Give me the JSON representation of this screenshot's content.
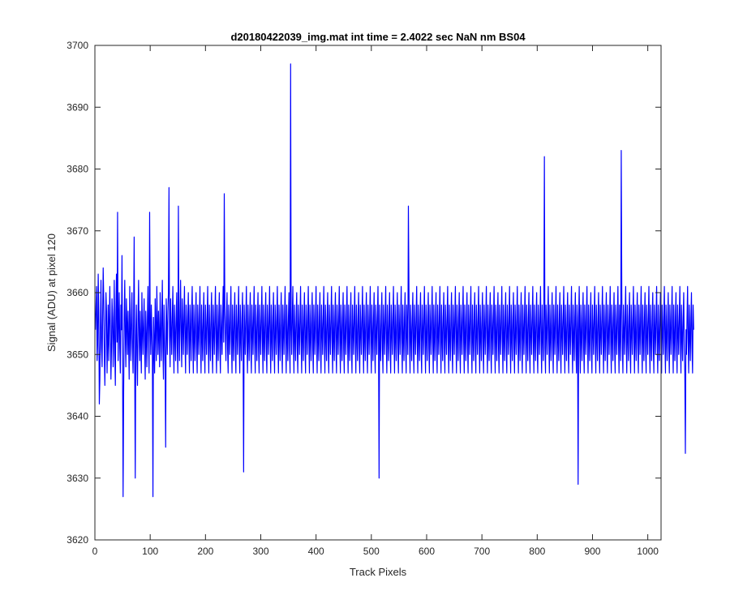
{
  "chart_data": {
    "type": "line",
    "title": "d20180422039_img.mat int time = 2.4022 sec  NaN nm BS04",
    "xlabel": "Track Pixels",
    "ylabel": "Signal (ADU) at pixel 120",
    "xlim": [
      0,
      1024
    ],
    "ylim": [
      3620,
      3700
    ],
    "xticks": [
      0,
      100,
      200,
      300,
      400,
      500,
      600,
      700,
      800,
      900,
      1000
    ],
    "yticks": [
      3620,
      3630,
      3640,
      3650,
      3660,
      3670,
      3680,
      3690,
      3700
    ],
    "xtick_labels": [
      "0",
      "100",
      "200",
      "300",
      "400",
      "500",
      "600",
      "700",
      "800",
      "900",
      "1000"
    ],
    "ytick_labels": [
      "3620",
      "3630",
      "3640",
      "3650",
      "3660",
      "3670",
      "3680",
      "3690",
      "3700"
    ],
    "grid": false,
    "legend": "none",
    "series": [
      {
        "color": "#0000ff",
        "x_start": 1,
        "x_step": 1,
        "values": [
          3654,
          3658,
          3661,
          3649,
          3652,
          3663,
          3657,
          3642,
          3646,
          3655,
          3662,
          3651,
          3648,
          3656,
          3664,
          3659,
          3650,
          3645,
          3653,
          3660,
          3657,
          3647,
          3652,
          3658,
          3649,
          3655,
          3661,
          3654,
          3646,
          3651,
          3659,
          3656,
          3648,
          3653,
          3662,
          3650,
          3645,
          3657,
          3663,
          3652,
          3673,
          3649,
          3655,
          3660,
          3651,
          3647,
          3658,
          3654,
          3666,
          3650,
          3627,
          3644,
          3656,
          3662,
          3653,
          3648,
          3659,
          3655,
          3650,
          3657,
          3652,
          3646,
          3661,
          3654,
          3649,
          3656,
          3660,
          3651,
          3647,
          3655,
          3669,
          3648,
          3630,
          3653,
          3658,
          3650,
          3645,
          3656,
          3662,
          3653,
          3649,
          3657,
          3652,
          3647,
          3660,
          3654,
          3650,
          3655,
          3659,
          3651,
          3646,
          3657,
          3653,
          3648,
          3656,
          3661,
          3652,
          3647,
          3673,
          3655,
          3650,
          3658,
          3654,
          3649,
          3627,
          3656,
          3652,
          3647,
          3659,
          3654,
          3649,
          3661,
          3655,
          3650,
          3657,
          3653,
          3648,
          3660,
          3654,
          3649,
          3656,
          3662,
          3651,
          3646,
          3658,
          3653,
          3648,
          3635,
          3659,
          3655,
          3650,
          3657,
          3660,
          3677,
          3653,
          3648,
          3659,
          3654,
          3650,
          3656,
          3661,
          3652,
          3647,
          3658,
          3653,
          3649,
          3656,
          3660,
          3651,
          3647,
          3674,
          3654,
          3649,
          3657,
          3662,
          3653,
          3648,
          3659,
          3655,
          3650,
          3656,
          3661,
          3652,
          3647,
          3658,
          3654,
          3650,
          3656,
          3660,
          3652,
          3647,
          3658,
          3654,
          3649,
          3657,
          3661,
          3652,
          3647,
          3658,
          3653,
          3649,
          3656,
          3660,
          3651,
          3647,
          3658,
          3654,
          3650,
          3656,
          3661,
          3652,
          3647,
          3658,
          3653,
          3649,
          3656,
          3660,
          3651,
          3647,
          3658,
          3654,
          3650,
          3656,
          3661,
          3652,
          3647,
          3658,
          3653,
          3649,
          3656,
          3660,
          3651,
          3647,
          3658,
          3654,
          3650,
          3656,
          3661,
          3652,
          3647,
          3658,
          3653,
          3649,
          3656,
          3660,
          3651,
          3647,
          3658,
          3654,
          3650,
          3656,
          3661,
          3652,
          3676,
          3658,
          3653,
          3649,
          3656,
          3660,
          3651,
          3647,
          3658,
          3654,
          3650,
          3656,
          3661,
          3652,
          3647,
          3658,
          3653,
          3649,
          3656,
          3660,
          3651,
          3647,
          3658,
          3654,
          3650,
          3656,
          3661,
          3652,
          3647,
          3658,
          3653,
          3649,
          3656,
          3660,
          3651,
          3631,
          3658,
          3654,
          3650,
          3656,
          3661,
          3652,
          3647,
          3658,
          3653,
          3649,
          3656,
          3660,
          3651,
          3647,
          3658,
          3654,
          3650,
          3656,
          3661,
          3652,
          3647,
          3658,
          3653,
          3649,
          3656,
          3660,
          3651,
          3647,
          3658,
          3654,
          3650,
          3656,
          3661,
          3652,
          3647,
          3658,
          3653,
          3649,
          3656,
          3660,
          3651,
          3647,
          3658,
          3654,
          3650,
          3656,
          3661,
          3652,
          3647,
          3658,
          3653,
          3649,
          3656,
          3660,
          3651,
          3647,
          3658,
          3654,
          3650,
          3656,
          3661,
          3652,
          3647,
          3658,
          3653,
          3649,
          3656,
          3660,
          3651,
          3647,
          3658,
          3654,
          3650,
          3656,
          3661,
          3652,
          3647,
          3658,
          3653,
          3649,
          3656,
          3660,
          3651,
          3647,
          3697,
          3654,
          3650,
          3656,
          3661,
          3652,
          3647,
          3658,
          3653,
          3649,
          3656,
          3660,
          3651,
          3647,
          3658,
          3654,
          3650,
          3656,
          3661,
          3652,
          3647,
          3658,
          3653,
          3649,
          3656,
          3660,
          3651,
          3647,
          3658,
          3654,
          3650,
          3656,
          3661,
          3652,
          3647,
          3658,
          3653,
          3649,
          3656,
          3660,
          3651,
          3647,
          3658,
          3654,
          3650,
          3656,
          3661,
          3652,
          3647,
          3658,
          3653,
          3649,
          3656,
          3660,
          3651,
          3647,
          3658,
          3654,
          3650,
          3656,
          3661,
          3652,
          3647,
          3658,
          3653,
          3649,
          3656,
          3660,
          3651,
          3647,
          3658,
          3654,
          3650,
          3656,
          3661,
          3652,
          3647,
          3658,
          3653,
          3649,
          3656,
          3660,
          3651,
          3647,
          3658,
          3654,
          3650,
          3656,
          3661,
          3652,
          3647,
          3658,
          3653,
          3649,
          3656,
          3660,
          3651,
          3647,
          3658,
          3654,
          3650,
          3656,
          3661,
          3652,
          3647,
          3658,
          3653,
          3649,
          3656,
          3660,
          3651,
          3647,
          3658,
          3654,
          3650,
          3656,
          3661,
          3652,
          3647,
          3658,
          3653,
          3649,
          3656,
          3660,
          3651,
          3647,
          3658,
          3654,
          3650,
          3656,
          3661,
          3652,
          3647,
          3658,
          3653,
          3649,
          3656,
          3660,
          3651,
          3647,
          3658,
          3654,
          3650,
          3656,
          3661,
          3652,
          3647,
          3658,
          3653,
          3649,
          3656,
          3660,
          3651,
          3647,
          3658,
          3654,
          3650,
          3656,
          3661,
          3652,
          3630,
          3658,
          3653,
          3649,
          3656,
          3660,
          3651,
          3647,
          3658,
          3654,
          3650,
          3656,
          3661,
          3652,
          3647,
          3658,
          3653,
          3649,
          3656,
          3660,
          3651,
          3647,
          3658,
          3654,
          3650,
          3656,
          3661,
          3652,
          3647,
          3658,
          3653,
          3649,
          3656,
          3660,
          3651,
          3647,
          3658,
          3654,
          3650,
          3656,
          3661,
          3652,
          3647,
          3658,
          3653,
          3649,
          3656,
          3660,
          3651,
          3647,
          3658,
          3654,
          3650,
          3674,
          3661,
          3652,
          3647,
          3658,
          3653,
          3649,
          3656,
          3660,
          3651,
          3647,
          3658,
          3654,
          3650,
          3656,
          3661,
          3652,
          3647,
          3658,
          3653,
          3649,
          3656,
          3660,
          3651,
          3647,
          3658,
          3654,
          3650,
          3656,
          3661,
          3652,
          3647,
          3658,
          3653,
          3649,
          3656,
          3660,
          3651,
          3647,
          3658,
          3654,
          3650,
          3656,
          3661,
          3652,
          3647,
          3658,
          3653,
          3649,
          3656,
          3660,
          3651,
          3647,
          3658,
          3654,
          3650,
          3656,
          3661,
          3652,
          3647,
          3658,
          3653,
          3649,
          3656,
          3660,
          3651,
          3647,
          3658,
          3654,
          3650,
          3656,
          3661,
          3652,
          3647,
          3658,
          3653,
          3649,
          3656,
          3660,
          3651,
          3647,
          3658,
          3654,
          3650,
          3656,
          3661,
          3652,
          3647,
          3658,
          3653,
          3649,
          3656,
          3660,
          3651,
          3647,
          3658,
          3654,
          3650,
          3656,
          3661,
          3652,
          3647,
          3658,
          3653,
          3649,
          3656,
          3660,
          3651,
          3647,
          3658,
          3654,
          3650,
          3656,
          3661,
          3652,
          3647,
          3658,
          3653,
          3649,
          3656,
          3660,
          3651,
          3647,
          3658,
          3654,
          3650,
          3656,
          3661,
          3652,
          3647,
          3658,
          3653,
          3649,
          3656,
          3660,
          3651,
          3647,
          3658,
          3654,
          3650,
          3656,
          3661,
          3652,
          3647,
          3658,
          3653,
          3649,
          3656,
          3660,
          3651,
          3647,
          3658,
          3654,
          3650,
          3656,
          3661,
          3652,
          3647,
          3658,
          3653,
          3649,
          3656,
          3660,
          3651,
          3647,
          3658,
          3654,
          3650,
          3656,
          3661,
          3652,
          3647,
          3658,
          3653,
          3649,
          3656,
          3660,
          3651,
          3647,
          3658,
          3654,
          3650,
          3656,
          3661,
          3652,
          3647,
          3658,
          3653,
          3649,
          3656,
          3660,
          3651,
          3647,
          3658,
          3654,
          3650,
          3656,
          3661,
          3652,
          3647,
          3658,
          3653,
          3649,
          3656,
          3660,
          3651,
          3647,
          3658,
          3654,
          3650,
          3656,
          3661,
          3652,
          3647,
          3658,
          3653,
          3649,
          3656,
          3660,
          3651,
          3647,
          3658,
          3654,
          3650,
          3656,
          3661,
          3652,
          3647,
          3658,
          3653,
          3649,
          3656,
          3660,
          3651,
          3647,
          3658,
          3654,
          3650,
          3656,
          3661,
          3652,
          3647,
          3658,
          3653,
          3649,
          3656,
          3682,
          3651,
          3647,
          3658,
          3654,
          3650,
          3656,
          3661,
          3652,
          3647,
          3658,
          3653,
          3649,
          3656,
          3660,
          3651,
          3647,
          3658,
          3654,
          3650,
          3656,
          3661,
          3652,
          3647,
          3658,
          3653,
          3649,
          3656,
          3660,
          3651,
          3647,
          3658,
          3654,
          3650,
          3656,
          3661,
          3652,
          3647,
          3658,
          3653,
          3649,
          3656,
          3660,
          3651,
          3647,
          3658,
          3654,
          3650,
          3656,
          3661,
          3652,
          3647,
          3658,
          3653,
          3649,
          3656,
          3660,
          3651,
          3647,
          3658,
          3654,
          3629,
          3656,
          3661,
          3652,
          3647,
          3658,
          3653,
          3649,
          3656,
          3660,
          3651,
          3647,
          3658,
          3654,
          3650,
          3656,
          3661,
          3652,
          3647,
          3658,
          3653,
          3649,
          3656,
          3660,
          3651,
          3647,
          3658,
          3654,
          3650,
          3656,
          3661,
          3652,
          3647,
          3658,
          3653,
          3649,
          3656,
          3660,
          3651,
          3647,
          3658,
          3654,
          3650,
          3656,
          3661,
          3652,
          3647,
          3658,
          3653,
          3649,
          3656,
          3660,
          3651,
          3647,
          3658,
          3654,
          3650,
          3656,
          3661,
          3652,
          3647,
          3658,
          3653,
          3649,
          3656,
          3660,
          3651,
          3647,
          3658,
          3654,
          3650,
          3656,
          3661,
          3652,
          3647,
          3658,
          3653,
          3649,
          3683,
          3660,
          3651,
          3647,
          3658,
          3654,
          3650,
          3656,
          3661,
          3652,
          3647,
          3658,
          3653,
          3649,
          3656,
          3660,
          3651,
          3647,
          3658,
          3654,
          3650,
          3656,
          3661,
          3652,
          3647,
          3658,
          3653,
          3649,
          3656,
          3660,
          3651,
          3647,
          3658,
          3654,
          3650,
          3656,
          3661,
          3652,
          3647,
          3658,
          3653,
          3649,
          3656,
          3660,
          3651,
          3647,
          3658,
          3654,
          3650,
          3656,
          3661,
          3652,
          3647,
          3658,
          3653,
          3649,
          3656,
          3660,
          3651,
          3647,
          3658,
          3654,
          3650,
          3656,
          3661,
          3652,
          3647,
          3658,
          3653,
          3649,
          3656,
          3660,
          3651,
          3647,
          3658,
          3654,
          3650,
          3656,
          3661,
          3652,
          3647,
          3658,
          3653,
          3649,
          3656,
          3660,
          3651,
          3647,
          3658,
          3654,
          3650,
          3656,
          3661,
          3652,
          3647,
          3658,
          3653,
          3649,
          3656,
          3660,
          3651,
          3647,
          3658,
          3654,
          3650,
          3656,
          3661,
          3652,
          3647,
          3658,
          3653,
          3649,
          3656,
          3660,
          3651,
          3647,
          3634,
          3654,
          3650,
          3656,
          3661,
          3652,
          3647,
          3658,
          3653,
          3649,
          3656,
          3660,
          3651,
          3647,
          3658,
          3654
        ]
      }
    ]
  },
  "axes": {
    "box_color": "#262626"
  }
}
